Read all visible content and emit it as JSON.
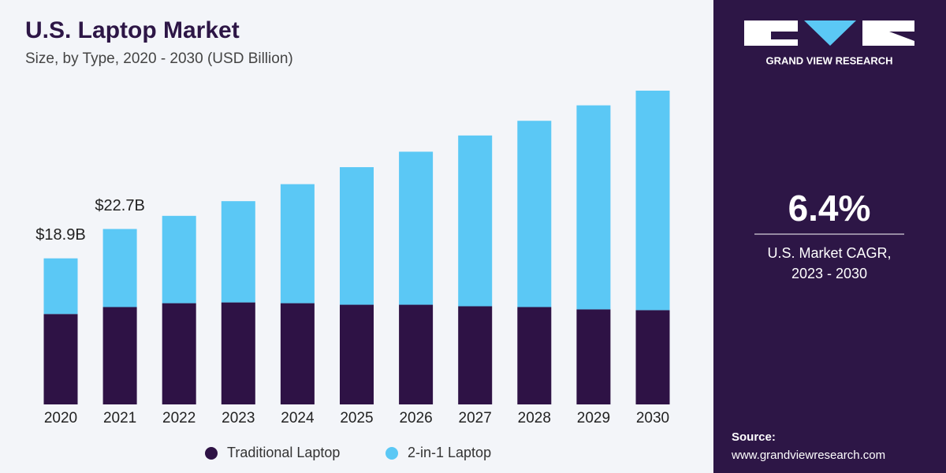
{
  "chart_data": {
    "type": "stacked_bar",
    "title": "U.S. Laptop Market",
    "subtitle": "Size, by Type, 2020 - 2030 (USD Billion)",
    "categories": [
      "2020",
      "2021",
      "2022",
      "2023",
      "2024",
      "2025",
      "2026",
      "2027",
      "2028",
      "2029",
      "2030"
    ],
    "series": [
      {
        "name": "Traditional Laptop",
        "color": "#2e1245",
        "values": [
          11.7,
          12.6,
          13.1,
          13.2,
          13.1,
          12.9,
          12.9,
          12.7,
          12.6,
          12.3,
          12.2
        ]
      },
      {
        "name": "2-in-1 Laptop",
        "color": "#5bc8f5",
        "values": [
          7.2,
          10.1,
          11.3,
          13.1,
          15.4,
          17.8,
          19.8,
          22.1,
          24.1,
          26.4,
          28.4
        ]
      }
    ],
    "annotations": [
      {
        "x": "2020",
        "value": 18.9,
        "text": "$18.9B"
      },
      {
        "x": "2021",
        "value": 22.7,
        "text": "$22.7B"
      }
    ],
    "legend": "bottom"
  },
  "panel": {
    "brand": "GRAND VIEW RESEARCH",
    "cagr": "6.4%",
    "cagr_label": "U.S. Market CAGR,",
    "cagr_period": "2023 - 2030",
    "source_label": "Source:",
    "source_url": "www.grandviewresearch.com"
  }
}
